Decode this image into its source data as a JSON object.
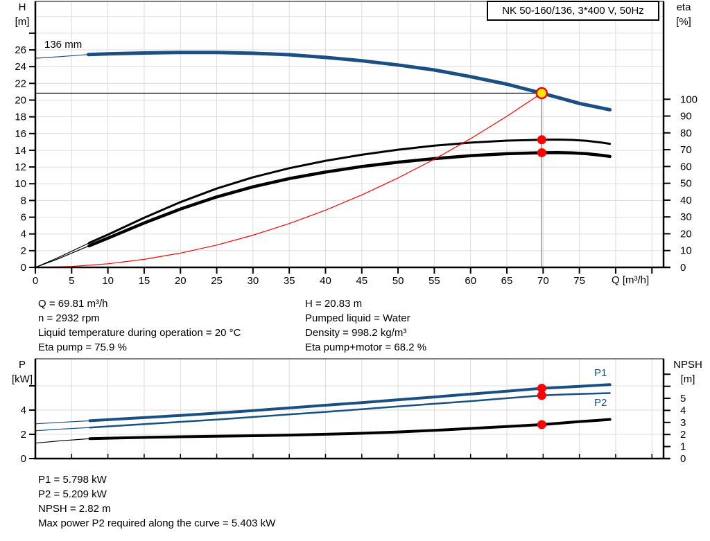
{
  "colors": {
    "curve_blue": "#1a4f82",
    "red": "#ff0000",
    "duty_fill": "#ffe900",
    "duty_vline": "#777777",
    "grid": "#dcdcdc",
    "black": "#000000"
  },
  "info_top_left": [
    "Q = 69.81 m³/h",
    "n = 2932 rpm",
    "Liquid temperature during operation = 20 °C",
    "Eta pump = 75.9 %"
  ],
  "info_top_right": [
    "H = 20.83 m",
    "Pumped liquid = Water",
    "Density = 998.2 kg/m³",
    "Eta pump+motor = 68.2 %"
  ],
  "info_bottom": [
    "P1 = 5.798 kW",
    "P2 = 5.209 kW",
    "NPSH = 2.82 m",
    "Max power P2 required along the curve = 5.403 kW"
  ],
  "chart_data": [
    {
      "type": "line",
      "title": "NK 50-160/136, 3*400 V, 50Hz",
      "xlabel": "Q [m³/h]",
      "ylabel_left": "H\n[m]",
      "ylabel_right": "eta\n[%]",
      "xlim": [
        0,
        86.6
      ],
      "ylim_left": [
        0,
        31.8
      ],
      "ylim_right": [
        0,
        158.2
      ],
      "grid_x": [
        5,
        10,
        15,
        20,
        25,
        30,
        35,
        40,
        45,
        50,
        55,
        60,
        65,
        70,
        75,
        80,
        85
      ],
      "grid_y": [
        2,
        4,
        6,
        8,
        10,
        12,
        14,
        16,
        18,
        20,
        22,
        24,
        26,
        28,
        30
      ],
      "x_ticks": [
        [
          0,
          "0"
        ],
        [
          5,
          "5"
        ],
        [
          10,
          "10"
        ],
        [
          15,
          "15"
        ],
        [
          20,
          "20"
        ],
        [
          25,
          "25"
        ],
        [
          30,
          "30"
        ],
        [
          35,
          "35"
        ],
        [
          40,
          "40"
        ],
        [
          45,
          "45"
        ],
        [
          50,
          "50"
        ],
        [
          55,
          "55"
        ],
        [
          60,
          "60"
        ],
        [
          65,
          "65"
        ],
        [
          70,
          "70"
        ],
        [
          75,
          "75"
        ],
        [
          80,
          ""
        ],
        [
          85,
          ""
        ]
      ],
      "y_ticks_left": [
        [
          0,
          "0"
        ],
        [
          2,
          "2"
        ],
        [
          4,
          "4"
        ],
        [
          6,
          "6"
        ],
        [
          8,
          "8"
        ],
        [
          10,
          "10"
        ],
        [
          12,
          "12"
        ],
        [
          14,
          "14"
        ],
        [
          16,
          "16"
        ],
        [
          18,
          "18"
        ],
        [
          20,
          "20"
        ],
        [
          22,
          "22"
        ],
        [
          24,
          "24"
        ],
        [
          26,
          "26"
        ],
        [
          28,
          ""
        ]
      ],
      "y_ticks_right": [
        [
          0,
          "0"
        ],
        [
          10,
          "10"
        ],
        [
          20,
          "20"
        ],
        [
          30,
          "30"
        ],
        [
          40,
          "40"
        ],
        [
          50,
          "50"
        ],
        [
          60,
          "60"
        ],
        [
          70,
          "70"
        ],
        [
          80,
          "80"
        ],
        [
          90,
          "90"
        ],
        [
          100,
          "100"
        ]
      ],
      "duty_lines": [
        {
          "name": "duty-head-line",
          "color": "#000000",
          "width": 1.2,
          "points": [
            [
              0,
              20.83
            ],
            [
              69.81,
              20.83
            ]
          ]
        },
        {
          "name": "duty-flow-line",
          "color": "#777777",
          "width": 1.2,
          "points": [
            [
              69.81,
              20.83
            ],
            [
              69.81,
              0
            ]
          ]
        }
      ],
      "series": [
        {
          "name": "head-curve-136mm",
          "label": "136 mm",
          "axis": "left",
          "color": "#1a4f82",
          "width": 5,
          "lead": [
            [
              0,
              25.0
            ],
            [
              3.5,
              25.2
            ],
            [
              7.3,
              25.45
            ]
          ],
          "points": [
            [
              7.3,
              25.45
            ],
            [
              10,
              25.52
            ],
            [
              15,
              25.63
            ],
            [
              20,
              25.7
            ],
            [
              25,
              25.7
            ],
            [
              30,
              25.6
            ],
            [
              35,
              25.42
            ],
            [
              40,
              25.1
            ],
            [
              45,
              24.7
            ],
            [
              50,
              24.2
            ],
            [
              55,
              23.6
            ],
            [
              60,
              22.8
            ],
            [
              65,
              21.9
            ],
            [
              69.81,
              20.83
            ],
            [
              72.5,
              20.2
            ],
            [
              75,
              19.6
            ],
            [
              79.2,
              18.85
            ]
          ]
        },
        {
          "name": "eta-pump-curve",
          "axis": "right",
          "color": "#000000",
          "width": 3,
          "lead": [
            [
              0,
              0
            ],
            [
              3,
              5.5
            ],
            [
              7.4,
              14.5
            ]
          ],
          "points": [
            [
              7.4,
              14.5
            ],
            [
              10,
              19.5
            ],
            [
              15,
              29.5
            ],
            [
              20,
              38.8
            ],
            [
              25,
              46.9
            ],
            [
              30,
              53.6
            ],
            [
              35,
              59.0
            ],
            [
              40,
              63.4
            ],
            [
              45,
              67.0
            ],
            [
              50,
              70.0
            ],
            [
              55,
              72.4
            ],
            [
              60,
              74.2
            ],
            [
              65,
              75.4
            ],
            [
              69.81,
              75.9
            ],
            [
              72,
              76.0
            ],
            [
              74,
              75.8
            ],
            [
              76,
              75.3
            ],
            [
              78,
              74.3
            ],
            [
              79.2,
              73.5
            ]
          ]
        },
        {
          "name": "eta-pump-motor-curve",
          "axis": "right",
          "color": "#000000",
          "width": 4.5,
          "lead": [
            [
              0,
              0
            ],
            [
              3,
              4.8
            ],
            [
              7.4,
              12.8
            ]
          ],
          "points": [
            [
              7.4,
              12.8
            ],
            [
              10,
              17.4
            ],
            [
              15,
              26.4
            ],
            [
              20,
              34.7
            ],
            [
              25,
              41.9
            ],
            [
              30,
              47.9
            ],
            [
              35,
              52.8
            ],
            [
              40,
              56.7
            ],
            [
              45,
              60.0
            ],
            [
              50,
              62.6
            ],
            [
              55,
              64.7
            ],
            [
              60,
              66.4
            ],
            [
              65,
              67.6
            ],
            [
              69.81,
              68.2
            ],
            [
              72,
              68.3
            ],
            [
              74,
              68.1
            ],
            [
              76,
              67.6
            ],
            [
              78,
              66.7
            ],
            [
              79.2,
              66.0
            ]
          ]
        },
        {
          "name": "system-curve",
          "axis": "left",
          "color": "#ff0000",
          "width": 1.2,
          "points": [
            [
              0,
              0
            ],
            [
              5,
              0.11
            ],
            [
              10,
              0.43
            ],
            [
              15,
              0.96
            ],
            [
              20,
              1.71
            ],
            [
              25,
              2.67
            ],
            [
              30,
              3.85
            ],
            [
              35,
              5.24
            ],
            [
              40,
              6.84
            ],
            [
              45,
              8.66
            ],
            [
              50,
              10.69
            ],
            [
              55,
              12.93
            ],
            [
              60,
              15.39
            ],
            [
              65,
              18.06
            ],
            [
              69.81,
              20.83
            ]
          ]
        }
      ],
      "markers": [
        {
          "name": "duty-point-marker",
          "style": "duty",
          "q": 69.81,
          "v": 20.83,
          "axis": "left"
        },
        {
          "name": "eta-pump-duty-dot",
          "style": "dot",
          "q": 69.81,
          "v": 75.9,
          "axis": "right"
        },
        {
          "name": "eta-pump-motor-duty-dot",
          "style": "dot",
          "q": 69.81,
          "v": 68.2,
          "axis": "right"
        }
      ]
    },
    {
      "type": "line",
      "title": "",
      "xlabel": "",
      "ylabel_left": "P\n[kW]",
      "ylabel_right": "NPSH\n[m]",
      "xlim": [
        0,
        86.6
      ],
      "ylim_left": [
        0,
        8.23
      ],
      "ylim_right": [
        0,
        8.28
      ],
      "grid_x": [
        5,
        10,
        15,
        20,
        25,
        30,
        35,
        40,
        45,
        50,
        55,
        60,
        65,
        70,
        75,
        80,
        85
      ],
      "grid_y": [
        2,
        4,
        6
      ],
      "x_ticks": [
        [
          0,
          ""
        ],
        [
          5,
          ""
        ],
        [
          10,
          ""
        ],
        [
          15,
          ""
        ],
        [
          20,
          ""
        ],
        [
          25,
          ""
        ],
        [
          30,
          ""
        ],
        [
          35,
          ""
        ],
        [
          40,
          ""
        ],
        [
          45,
          ""
        ],
        [
          50,
          ""
        ],
        [
          55,
          ""
        ],
        [
          60,
          ""
        ],
        [
          65,
          ""
        ],
        [
          70,
          ""
        ],
        [
          75,
          ""
        ],
        [
          80,
          ""
        ],
        [
          85,
          ""
        ]
      ],
      "y_ticks_left": [
        [
          0,
          "0"
        ],
        [
          2,
          "2"
        ],
        [
          4,
          "4"
        ],
        [
          6,
          ""
        ]
      ],
      "y_ticks_right": [
        [
          0,
          "0"
        ],
        [
          1,
          "1"
        ],
        [
          2,
          "2"
        ],
        [
          3,
          "3"
        ],
        [
          4,
          "4"
        ],
        [
          5,
          "5"
        ],
        [
          6,
          ""
        ],
        [
          7,
          ""
        ]
      ],
      "duty_lines": [],
      "series": [
        {
          "name": "p1-power-curve",
          "label": "P1",
          "axis": "left",
          "color": "#1a4f82",
          "width": 4,
          "lead": [
            [
              0,
              2.87
            ],
            [
              3.5,
              2.99
            ],
            [
              7.5,
              3.12
            ]
          ],
          "points": [
            [
              7.5,
              3.12
            ],
            [
              12,
              3.28
            ],
            [
              16,
              3.42
            ],
            [
              20,
              3.56
            ],
            [
              25,
              3.75
            ],
            [
              30,
              3.96
            ],
            [
              35,
              4.18
            ],
            [
              40,
              4.4
            ],
            [
              45,
              4.62
            ],
            [
              50,
              4.85
            ],
            [
              55,
              5.08
            ],
            [
              60,
              5.32
            ],
            [
              65,
              5.56
            ],
            [
              69.81,
              5.798
            ],
            [
              72.5,
              5.88
            ],
            [
              75,
              5.96
            ],
            [
              77.5,
              6.04
            ],
            [
              79.2,
              6.1
            ]
          ]
        },
        {
          "name": "p2-power-curve",
          "label": "P2",
          "axis": "left",
          "color": "#1a4f82",
          "width": 2.5,
          "lead": [
            [
              0,
              2.3
            ],
            [
              3.5,
              2.43
            ],
            [
              7.5,
              2.56
            ]
          ],
          "points": [
            [
              7.5,
              2.56
            ],
            [
              12,
              2.73
            ],
            [
              16,
              2.88
            ],
            [
              20,
              3.03
            ],
            [
              25,
              3.22
            ],
            [
              30,
              3.43
            ],
            [
              35,
              3.64
            ],
            [
              40,
              3.85
            ],
            [
              45,
              4.07
            ],
            [
              50,
              4.3
            ],
            [
              55,
              4.52
            ],
            [
              60,
              4.74
            ],
            [
              65,
              4.98
            ],
            [
              69.81,
              5.209
            ],
            [
              72.5,
              5.28
            ],
            [
              75,
              5.33
            ],
            [
              77.5,
              5.37
            ],
            [
              79.2,
              5.403
            ]
          ]
        },
        {
          "name": "npsh-curve",
          "axis": "right",
          "color": "#000000",
          "width": 4,
          "lead": [
            [
              0,
              1.28
            ],
            [
              3.5,
              1.48
            ],
            [
              7.5,
              1.65
            ]
          ],
          "points": [
            [
              7.5,
              1.65
            ],
            [
              12,
              1.72
            ],
            [
              16,
              1.77
            ],
            [
              20,
              1.81
            ],
            [
              25,
              1.86
            ],
            [
              30,
              1.9
            ],
            [
              35,
              1.95
            ],
            [
              40,
              2.02
            ],
            [
              45,
              2.1
            ],
            [
              50,
              2.21
            ],
            [
              55,
              2.34
            ],
            [
              60,
              2.5
            ],
            [
              65,
              2.66
            ],
            [
              69.81,
              2.82
            ],
            [
              72.5,
              2.95
            ],
            [
              75,
              3.07
            ],
            [
              77.5,
              3.17
            ],
            [
              79.2,
              3.25
            ]
          ]
        }
      ],
      "markers": [
        {
          "name": "p1-duty-dot",
          "style": "dot",
          "q": 69.81,
          "v": 5.798,
          "axis": "left"
        },
        {
          "name": "p2-duty-dot",
          "style": "dot",
          "q": 69.81,
          "v": 5.209,
          "axis": "left"
        },
        {
          "name": "npsh-duty-dot",
          "style": "dot",
          "q": 69.81,
          "v": 2.82,
          "axis": "right"
        }
      ]
    }
  ]
}
